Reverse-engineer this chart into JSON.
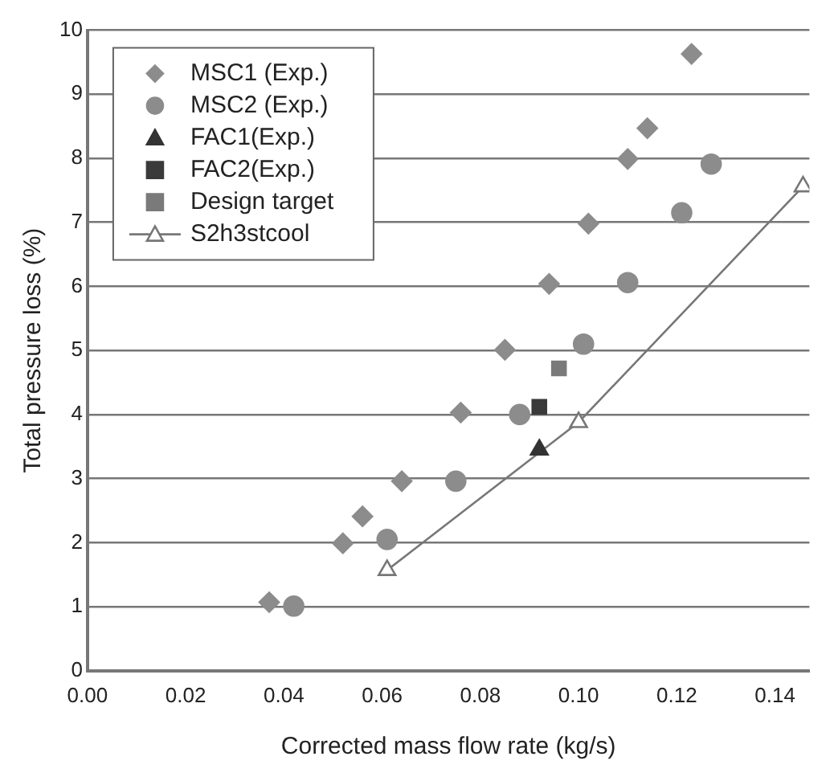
{
  "chart_data": {
    "type": "scatter",
    "xlabel": "Corrected mass flow rate (kg/s)",
    "ylabel": "Total pressure loss (%)",
    "xlim": [
      0,
      0.147
    ],
    "xticks": [
      {
        "value": 0,
        "label": "0.00"
      },
      {
        "value": 0.02,
        "label": "0.02"
      },
      {
        "value": 0.04,
        "label": "0.04"
      },
      {
        "value": 0.06,
        "label": "0.06"
      },
      {
        "value": 0.08,
        "label": "0.08"
      },
      {
        "value": 0.1,
        "label": "0.10"
      },
      {
        "value": 0.12,
        "label": "0.12"
      },
      {
        "value": 0.14,
        "label": "0.14"
      }
    ],
    "ylim": [
      0,
      10
    ],
    "yticks": [
      0,
      1,
      2,
      3,
      4,
      5,
      6,
      7,
      8,
      9,
      10
    ],
    "grid": "y",
    "legend": "top left",
    "series": [
      {
        "name": "MSC1 (Exp.)",
        "color": "#8c8c8c",
        "marker": "diamond",
        "x": [
          0.037,
          0.052,
          0.056,
          0.064,
          0.076,
          0.085,
          0.094,
          0.102,
          0.11,
          0.114,
          0.123
        ],
        "values": [
          1.07,
          1.99,
          2.41,
          2.96,
          4.03,
          5.01,
          6.04,
          6.98,
          7.99,
          8.47,
          9.63
        ]
      },
      {
        "name": "MSC2 (Exp.)",
        "color": "#8c8c8c",
        "marker": "circle",
        "x": [
          0.042,
          0.061,
          0.075,
          0.088,
          0.101,
          0.11,
          0.121,
          0.127
        ],
        "values": [
          1.01,
          2.05,
          2.96,
          4.0,
          5.1,
          6.06,
          7.15,
          7.91
        ]
      },
      {
        "name": "FAC1(Exp.)",
        "color": "#333333",
        "marker": "triangle",
        "x": [
          0.092
        ],
        "values": [
          3.45
        ]
      },
      {
        "name": "FAC2(Exp.)",
        "color": "#3a3a3a",
        "marker": "square",
        "x": [
          0.092
        ],
        "values": [
          4.12
        ]
      },
      {
        "name": "Design target",
        "color": "#7a7a7a",
        "marker": "square",
        "x": [
          0.096
        ],
        "values": [
          4.72
        ]
      },
      {
        "name": "S2h3stcool",
        "type": "line",
        "color": "#777777",
        "marker": "triangle",
        "line_style": "solid",
        "x": [
          0.061,
          0.1,
          0.1457
        ],
        "values": [
          1.57,
          3.88,
          7.56
        ]
      }
    ]
  }
}
